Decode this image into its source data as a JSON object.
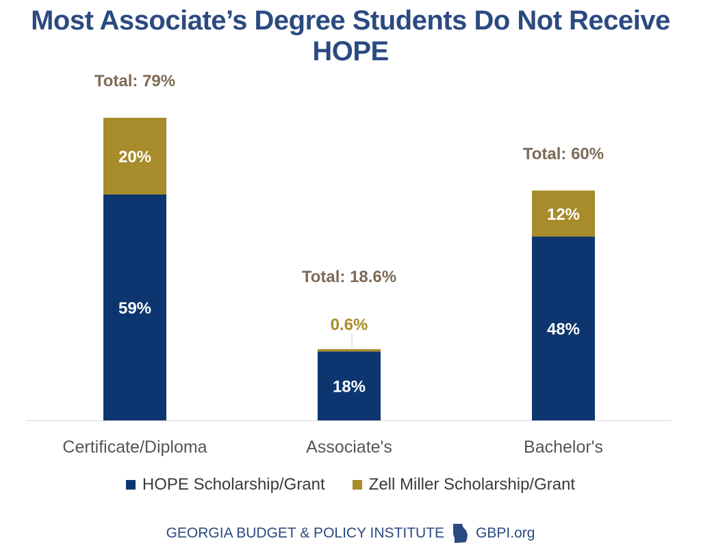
{
  "chart_data": {
    "type": "bar",
    "stacked": true,
    "title": "Most Associate’s Degree Students Do Not Receive HOPE",
    "categories": [
      "Certificate/Diploma",
      "Associate's",
      "Bachelor's"
    ],
    "series": [
      {
        "name": "HOPE Scholarship/Grant",
        "values": [
          59,
          18,
          48
        ],
        "labels": [
          "59%",
          "18%",
          "48%"
        ],
        "color": "#0d3670"
      },
      {
        "name": "Zell Miller Scholarship/Grant",
        "values": [
          20,
          0.6,
          12
        ],
        "labels": [
          "20%",
          "0.6%",
          "12%"
        ],
        "color": "#a88b2a"
      }
    ],
    "totals": [
      "Total: 79%",
      "Total: 18.6%",
      "Total: 60%"
    ],
    "ylim": [
      0,
      79
    ],
    "grid": false,
    "legend_position": "bottom"
  },
  "colors": {
    "title": "#2b4a80",
    "total_label": "#7d6a57",
    "axis_label": "#555555",
    "hope": "#0d3670",
    "zell": "#a88b2a"
  },
  "footer": {
    "org": "GEORGIA BUDGET & POLICY INSTITUTE",
    "url": "GBPI.org",
    "icon": "georgia-state-icon"
  }
}
